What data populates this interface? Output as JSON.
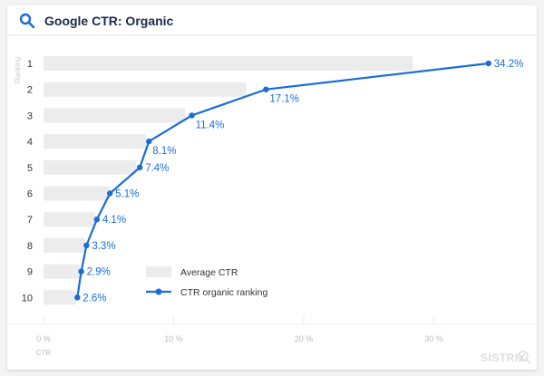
{
  "header": {
    "title": "Google CTR: Organic",
    "icon": "search-icon"
  },
  "watermark": "SISTRIX",
  "chart_data": {
    "type": "bar+line",
    "title": "Google CTR: Organic",
    "ylabel": "Ranking",
    "xlabel": "CTR",
    "categories": [
      "1",
      "2",
      "3",
      "4",
      "5",
      "6",
      "7",
      "8",
      "9",
      "10"
    ],
    "xlim": [
      0,
      37
    ],
    "xticks": [
      0,
      10,
      20,
      30
    ],
    "xtick_labels": [
      "0 %",
      "10 %",
      "20 %",
      "30 %"
    ],
    "series": [
      {
        "name": "Average CTR",
        "type": "bar",
        "color": "#ececec",
        "values": [
          28.4,
          15.6,
          10.9,
          7.9,
          7.1,
          5.1,
          4.0,
          3.2,
          2.8,
          2.5
        ]
      },
      {
        "name": "CTR organic ranking",
        "type": "line",
        "color": "#1a6cd8",
        "values": [
          34.2,
          17.1,
          11.4,
          8.1,
          7.4,
          5.1,
          4.1,
          3.3,
          2.9,
          2.6
        ],
        "labels": [
          "34.2%",
          "17.1%",
          "11.4%",
          "8.1%",
          "7.4%",
          "5.1%",
          "4.1%",
          "3.3%",
          "2.9%",
          "2.6%"
        ]
      }
    ],
    "legend": "center"
  }
}
